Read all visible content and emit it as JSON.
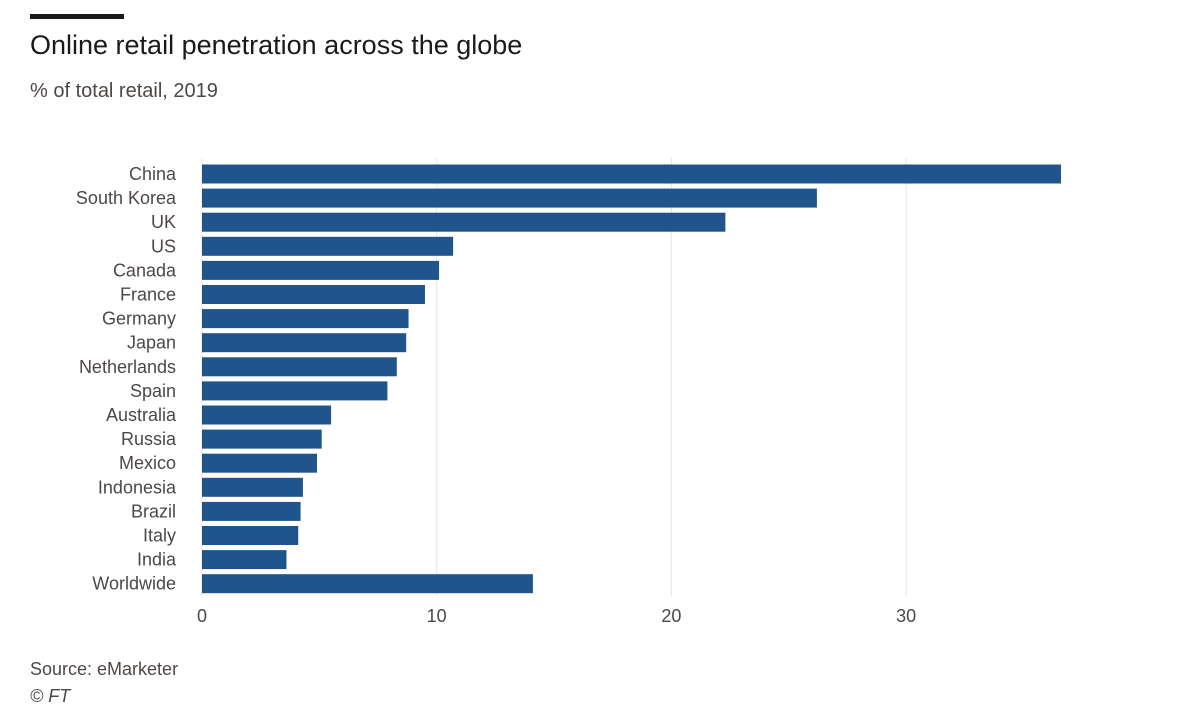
{
  "header": {
    "title": "Online retail penetration across the globe",
    "subtitle": "% of total retail, 2019"
  },
  "footer": {
    "source": "Source: eMarketer",
    "credit": "© FT"
  },
  "colors": {
    "bar": "#1f558c",
    "grid": "#e6e3df",
    "text": "#4d4845"
  },
  "chart_data": {
    "type": "bar",
    "orientation": "horizontal",
    "title": "Online retail penetration across the globe",
    "subtitle": "% of total retail, 2019",
    "xlabel": "",
    "ylabel": "",
    "xlim": [
      0,
      37
    ],
    "xticks": [
      0,
      10,
      20,
      30
    ],
    "grid": true,
    "categories": [
      "China",
      "South Korea",
      "UK",
      "US",
      "Canada",
      "France",
      "Germany",
      "Japan",
      "Netherlands",
      "Spain",
      "Australia",
      "Russia",
      "Mexico",
      "Indonesia",
      "Brazil",
      "Italy",
      "India",
      "Worldwide"
    ],
    "values": [
      36.6,
      26.2,
      22.3,
      10.7,
      10.1,
      9.5,
      8.8,
      8.7,
      8.3,
      7.9,
      5.5,
      5.1,
      4.9,
      4.3,
      4.2,
      4.1,
      3.6,
      14.1
    ]
  }
}
